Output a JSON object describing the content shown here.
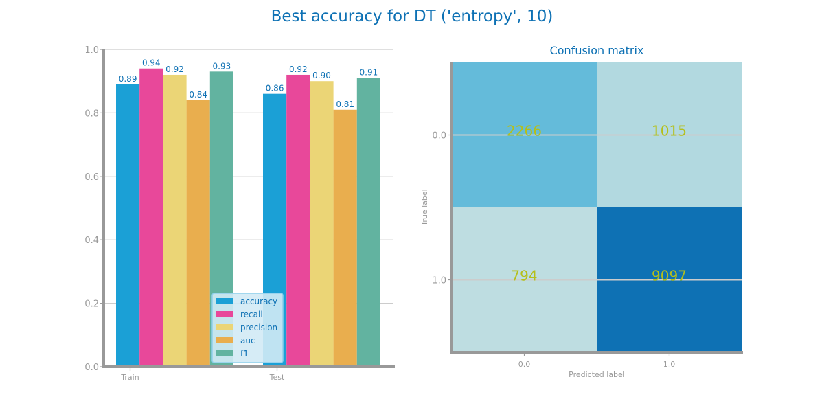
{
  "figure": {
    "title": "Best accuracy for DT ('entropy', 10)"
  },
  "chart_data": [
    {
      "type": "bar",
      "title": "",
      "xlabel": "",
      "ylabel": "",
      "categories": [
        "Train",
        "Test"
      ],
      "ylim": [
        0,
        1
      ],
      "yticks": [
        "0.0",
        "0.2",
        "0.4",
        "0.6",
        "0.8",
        "1.0"
      ],
      "grid": true,
      "legend_position": "lower-right",
      "series": [
        {
          "name": "accuracy",
          "color": "#1BA0D6",
          "values": [
            0.89,
            0.86
          ],
          "labels": [
            "0.89",
            "0.86"
          ]
        },
        {
          "name": "recall",
          "color": "#E8489A",
          "values": [
            0.94,
            0.92
          ],
          "labels": [
            "0.94",
            "0.92"
          ]
        },
        {
          "name": "precision",
          "color": "#EBD576",
          "values": [
            0.92,
            0.9
          ],
          "labels": [
            "0.92",
            "0.90"
          ]
        },
        {
          "name": "auc",
          "color": "#E9AE4E",
          "values": [
            0.84,
            0.81
          ],
          "labels": [
            "0.84",
            "0.81"
          ]
        },
        {
          "name": "f1",
          "color": "#62B3A0",
          "values": [
            0.93,
            0.91
          ],
          "labels": [
            "0.93",
            "0.91"
          ]
        }
      ]
    },
    {
      "type": "heatmap",
      "title": "Confusion matrix",
      "xlabel": "Predicted label",
      "ylabel": "True label",
      "x_categories": [
        "0.0",
        "1.0"
      ],
      "y_categories": [
        "0.0",
        "1.0"
      ],
      "values": [
        [
          2266,
          1015
        ],
        [
          794,
          9097
        ]
      ],
      "cell_colors": [
        [
          "#64BBDA",
          "#B2D9E0"
        ],
        [
          "#BEDDE1",
          "#0E71B4"
        ]
      ],
      "annotation_color": "#B5BF1A"
    }
  ],
  "colors": {
    "title": "#0E71B4",
    "axis": "#999999",
    "grid": "#CCCCCC",
    "tick_label": "#999999",
    "bar_label": "#0E71B4",
    "legend_text": "#0E71B4",
    "legend_bg": "#D2EAF5",
    "legend_border": "#8FD0EC"
  }
}
